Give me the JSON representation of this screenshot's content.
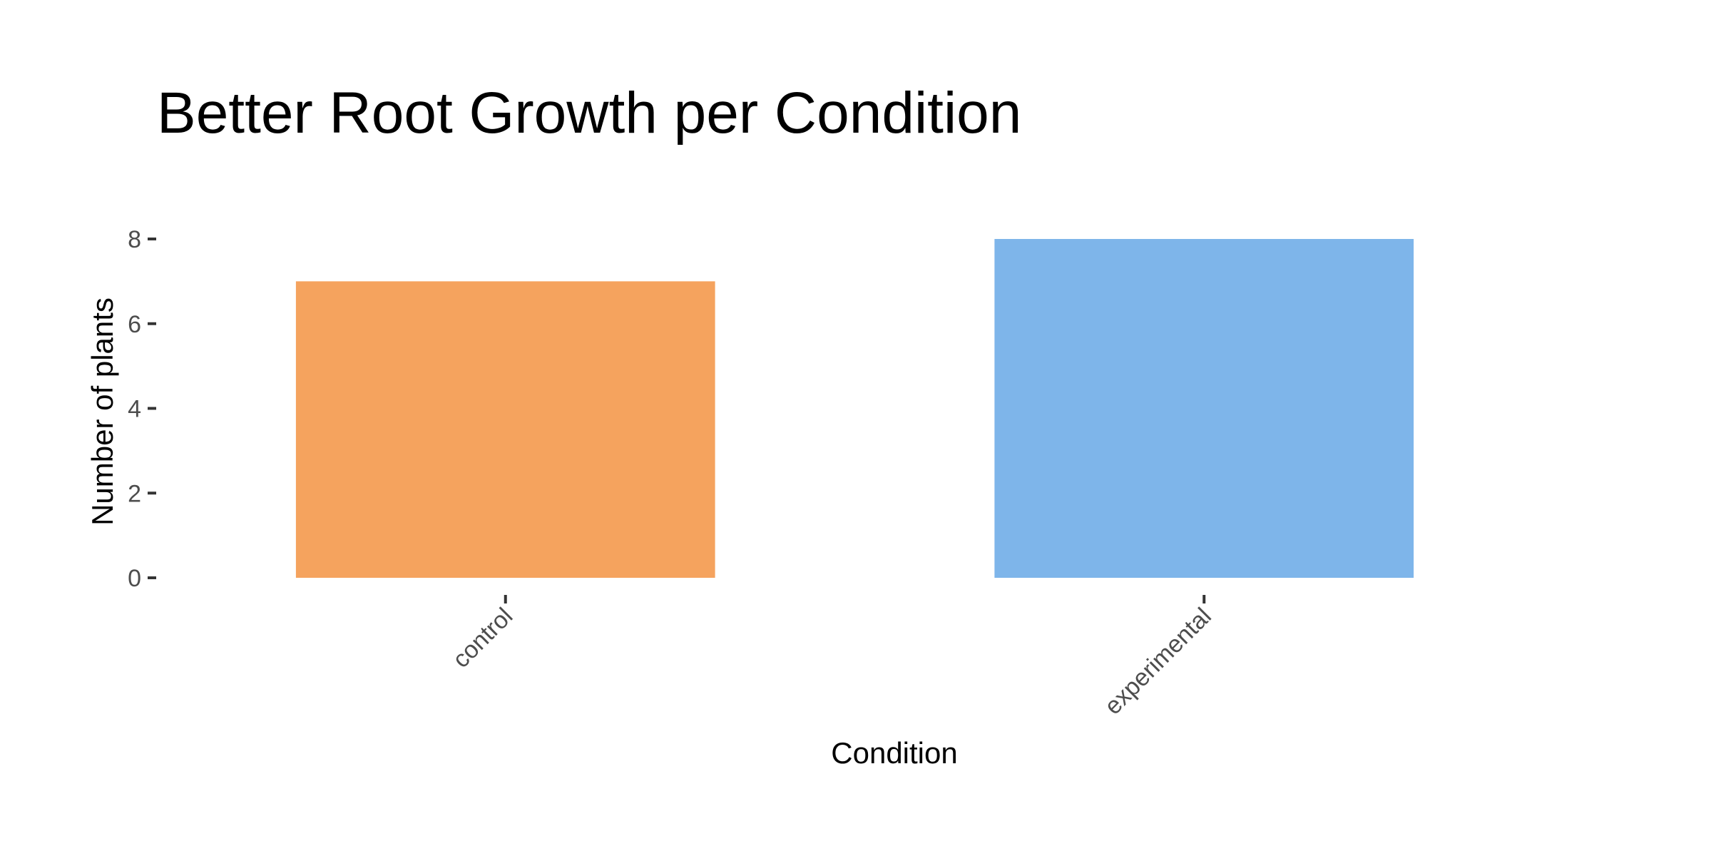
{
  "chart_data": {
    "type": "bar",
    "title": "Better Root Growth per Condition",
    "xlabel": "Condition",
    "ylabel": "Number of plants",
    "categories": [
      "control",
      "experimental"
    ],
    "values": [
      7,
      8
    ],
    "colors": [
      "#F5A35E",
      "#7EB5EA"
    ],
    "ylim": [
      0,
      8
    ],
    "yticks": [
      "0",
      "2",
      "4",
      "6",
      "8"
    ],
    "grid": false,
    "legend": "none"
  }
}
